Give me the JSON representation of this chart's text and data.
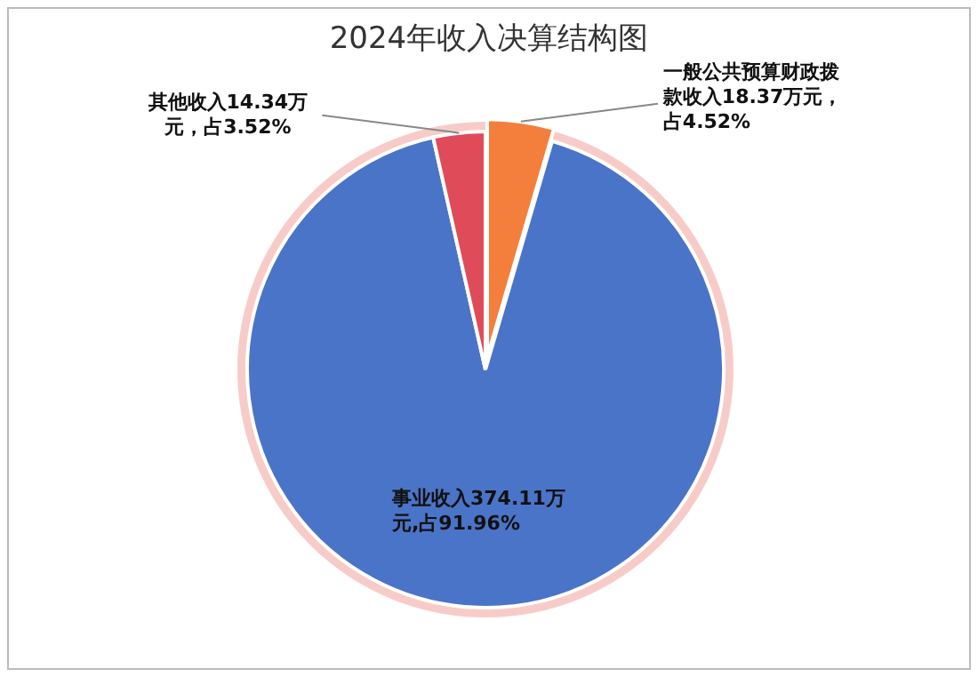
{
  "chart_data": {
    "type": "pie",
    "title": "2024年收入决算结构图",
    "categories": [
      "一般公共预算财政拨款收入18.37万元，占4.52%",
      "事业收入374.11万元,占91.96%",
      "其他收入14.34万元，占3.52%"
    ],
    "values": [
      18.37,
      374.11,
      14.34
    ],
    "colors": [
      "#f47f3c",
      "#4a74c8",
      "#e04b5a"
    ],
    "legend": false
  }
}
